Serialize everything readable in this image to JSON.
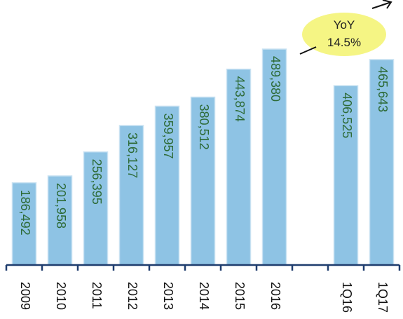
{
  "chart_data": {
    "type": "bar",
    "categories": [
      "2009",
      "2010",
      "2011",
      "2012",
      "2013",
      "2014",
      "2015",
      "2016",
      "",
      "1Q16",
      "1Q17"
    ],
    "values": [
      186492,
      201958,
      256395,
      316127,
      359957,
      380512,
      443874,
      489380,
      null,
      406525,
      465643
    ],
    "value_labels": [
      "186,492",
      "201,958",
      "256,395",
      "316,127",
      "359,957",
      "380,512",
      "443,874",
      "489,380",
      "",
      "406,525",
      "465,643"
    ],
    "ylim": [
      0,
      530000
    ],
    "grid": false,
    "colors": {
      "bar": "#8ec3e4",
      "bar_border": "#c9e2f2",
      "value_text": "#2d6a36",
      "axis": "#1f3d6e",
      "callout": "#f5f584"
    },
    "annotation": {
      "line1": "YoY",
      "line2": "14.5%"
    }
  }
}
